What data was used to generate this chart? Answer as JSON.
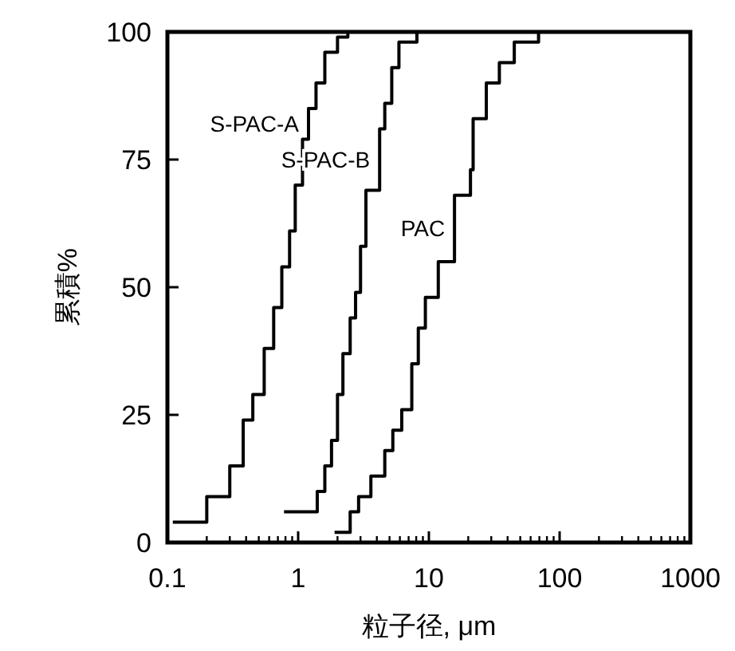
{
  "chart_data": {
    "type": "step",
    "xlabel": "粒子径, μm",
    "ylabel": "累積%",
    "log": "x",
    "xlim": [
      0.1,
      1000
    ],
    "xticks": [
      0.1,
      1,
      10,
      100,
      1000
    ],
    "ylim": [
      0,
      100
    ],
    "yticks": [
      0,
      25,
      50,
      75,
      100
    ],
    "series": [
      {
        "name": "S-PAC-A",
        "color": "#000000",
        "x": [
          0.11,
          0.2,
          0.3,
          0.38,
          0.45,
          0.55,
          0.65,
          0.75,
          0.86,
          0.95,
          1.08,
          1.2,
          1.37,
          1.6,
          2.0,
          2.4
        ],
        "values": [
          4,
          9,
          15,
          24,
          29,
          38,
          46,
          54,
          61,
          70,
          79,
          85,
          90,
          96,
          99,
          100
        ]
      },
      {
        "name": "S-PAC-B",
        "color": "#000000",
        "x": [
          0.78,
          1.4,
          1.6,
          1.8,
          2.0,
          2.2,
          2.5,
          2.75,
          3.0,
          3.3,
          4.2,
          4.6,
          5.2,
          5.9,
          8.1
        ],
        "values": [
          6,
          10,
          15,
          20,
          29,
          37,
          44,
          49,
          58,
          69,
          81,
          86,
          93,
          98,
          100
        ]
      },
      {
        "name": "PAC",
        "color": "#000000",
        "x": [
          1.9,
          2.5,
          2.9,
          3.6,
          4.6,
          5.3,
          6.2,
          7.4,
          8.3,
          9.4,
          11.8,
          15.7,
          20.8,
          21.8,
          27.5,
          34.6,
          45,
          69
        ],
        "values": [
          2,
          6,
          9,
          13,
          18,
          22,
          26,
          35,
          42,
          48,
          55,
          68,
          73,
          83,
          90,
          94,
          98,
          100
        ]
      }
    ]
  }
}
